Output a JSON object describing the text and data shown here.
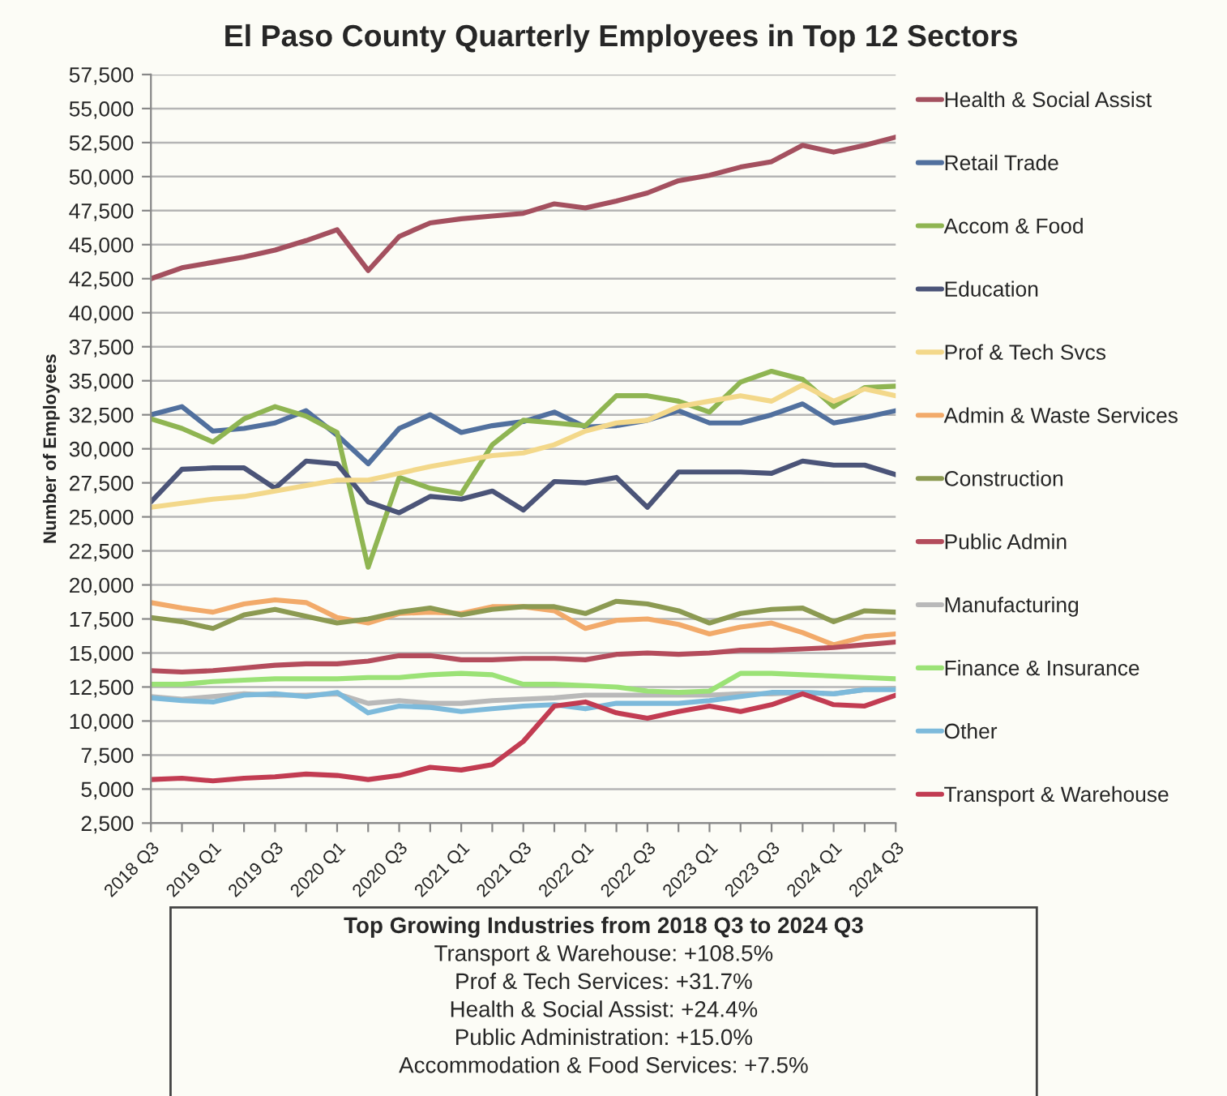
{
  "chart_data": {
    "type": "line",
    "title": "El Paso County Quarterly Employees in Top 12 Sectors",
    "ylabel": "Number of Employees",
    "categories": [
      "2018 Q3",
      null,
      "2019 Q1",
      null,
      "2019 Q3",
      null,
      "2020 Q1",
      null,
      "2020 Q3",
      null,
      "2021 Q1",
      null,
      "2021 Q3",
      null,
      "2022 Q1",
      null,
      "2022 Q3",
      null,
      "2023 Q1",
      null,
      "2023 Q3",
      null,
      "2024 Q1",
      null,
      "2024 Q3"
    ],
    "series": [
      {
        "name": "Health & Social Assist",
        "color": "#a4505f",
        "values": [
          42500,
          43300,
          43700,
          44100,
          44600,
          45300,
          46100,
          43100,
          45600,
          46600,
          46900,
          47100,
          47300,
          48000,
          47700,
          48200,
          48800,
          49700,
          50100,
          50700,
          51100,
          52300,
          51800,
          52300,
          52900
        ]
      },
      {
        "name": "Retail Trade",
        "color": "#51709e",
        "values": [
          32500,
          33100,
          31300,
          31500,
          31900,
          32800,
          31000,
          28900,
          31500,
          32500,
          31200,
          31700,
          32000,
          32700,
          31600,
          31700,
          32100,
          32800,
          31900,
          31900,
          32500,
          33300,
          31900,
          32300,
          32800
        ]
      },
      {
        "name": "Accom & Food",
        "color": "#8fb552",
        "values": [
          32200,
          31500,
          30500,
          32200,
          33100,
          32400,
          31200,
          21300,
          27900,
          27100,
          26700,
          30300,
          32100,
          31900,
          31700,
          33900,
          33900,
          33500,
          32700,
          34900,
          35700,
          35100,
          33100,
          34500,
          34600
        ]
      },
      {
        "name": "Education",
        "color": "#4b5478",
        "values": [
          26100,
          28500,
          28600,
          28600,
          27100,
          29100,
          28900,
          26100,
          25300,
          26500,
          26300,
          26900,
          25500,
          27600,
          27500,
          27900,
          25700,
          28300,
          28300,
          28300,
          28200,
          29100,
          28800,
          28800,
          28100
        ]
      },
      {
        "name": "Prof & Tech Svcs",
        "color": "#f3d88a",
        "values": [
          25700,
          26000,
          26300,
          26500,
          26900,
          27300,
          27700,
          27700,
          28200,
          28700,
          29100,
          29500,
          29700,
          30300,
          31300,
          31900,
          32100,
          33100,
          33500,
          33900,
          33500,
          34700,
          33500,
          34400,
          33900
        ]
      },
      {
        "name": "Admin & Waste Services",
        "color": "#f2aa6a",
        "values": [
          18700,
          18300,
          18000,
          18600,
          18900,
          18700,
          17600,
          17200,
          17900,
          18000,
          17900,
          18400,
          18400,
          18100,
          16800,
          17400,
          17500,
          17100,
          16400,
          16900,
          17200,
          16500,
          15600,
          16200,
          16400
        ]
      },
      {
        "name": "Construction",
        "color": "#8c9a52",
        "values": [
          17600,
          17300,
          16800,
          17800,
          18200,
          17700,
          17200,
          17500,
          18000,
          18300,
          17800,
          18200,
          18400,
          18400,
          17900,
          18800,
          18600,
          18100,
          17200,
          17900,
          18200,
          18300,
          17300,
          18100,
          18000
        ]
      },
      {
        "name": "Public Admin",
        "color": "#b44c5c",
        "values": [
          13700,
          13600,
          13700,
          13900,
          14100,
          14200,
          14200,
          14400,
          14800,
          14800,
          14500,
          14500,
          14600,
          14600,
          14500,
          14900,
          15000,
          14900,
          15000,
          15200,
          15200,
          15300,
          15400,
          15600,
          15800
        ]
      },
      {
        "name": "Manufacturing",
        "color": "#b9b9b9",
        "values": [
          11800,
          11600,
          11800,
          12000,
          11900,
          11900,
          12000,
          11300,
          11500,
          11300,
          11300,
          11500,
          11600,
          11700,
          11900,
          11900,
          11900,
          11900,
          11900,
          12000,
          12000,
          12100,
          12000,
          12300,
          12400
        ]
      },
      {
        "name": "Finance & Insurance",
        "color": "#9be276",
        "values": [
          12700,
          12700,
          12900,
          13000,
          13100,
          13100,
          13100,
          13200,
          13200,
          13400,
          13500,
          13400,
          12700,
          12700,
          12600,
          12500,
          12200,
          12100,
          12200,
          13500,
          13500,
          13400,
          13300,
          13200,
          13100
        ]
      },
      {
        "name": "Other",
        "color": "#7dbadb",
        "values": [
          11700,
          11500,
          11400,
          11900,
          12000,
          11800,
          12100,
          10600,
          11100,
          11000,
          10700,
          10900,
          11100,
          11200,
          10900,
          11300,
          11300,
          11300,
          11500,
          11800,
          12100,
          12100,
          12000,
          12300,
          12300
        ]
      },
      {
        "name": "Transport & Warehouse",
        "color": "#c23c52",
        "values": [
          5700,
          5800,
          5600,
          5800,
          5900,
          6100,
          6000,
          5700,
          6000,
          6600,
          6400,
          6800,
          8500,
          11100,
          11400,
          10600,
          10200,
          10700,
          11100,
          10700,
          11200,
          12000,
          11200,
          11100,
          11900
        ]
      }
    ],
    "ylim": [
      2500,
      57500
    ],
    "yticks": [
      {
        "value": 2500,
        "label": "2,500"
      },
      {
        "value": 5000,
        "label": "5,000"
      },
      {
        "value": 7500,
        "label": "7,500"
      },
      {
        "value": 10000,
        "label": "10,000"
      },
      {
        "value": 12500,
        "label": "12,500"
      },
      {
        "value": 15000,
        "label": "15,000"
      },
      {
        "value": 17500,
        "label": "17,500"
      },
      {
        "value": 20000,
        "label": "20,000"
      },
      {
        "value": 22500,
        "label": "22,500"
      },
      {
        "value": 25000,
        "label": "25,000"
      },
      {
        "value": 27500,
        "label": "27,500"
      },
      {
        "value": 30000,
        "label": "30,000"
      },
      {
        "value": 32500,
        "label": "32,500"
      },
      {
        "value": 35000,
        "label": "35,000"
      },
      {
        "value": 37500,
        "label": "37,500"
      },
      {
        "value": 40000,
        "label": "40,000"
      },
      {
        "value": 42500,
        "label": "42,500"
      },
      {
        "value": 45000,
        "label": "45,000"
      },
      {
        "value": 47500,
        "label": "47,500"
      },
      {
        "value": 50000,
        "label": "50,000"
      },
      {
        "value": 52500,
        "label": "52,500"
      },
      {
        "value": 55000,
        "label": "55,000"
      },
      {
        "value": 57500,
        "label": "57,500"
      }
    ],
    "grid": "y",
    "legend": "right",
    "annotations": [
      "Top Growing Industries from 2018 Q3 to 2024 Q3",
      "Transport & Warehouse: +108.5%",
      "Prof & Tech Services: +31.7%",
      "Health & Social Assist: +24.4%",
      "Public Administration: +15.0%",
      "Accommodation & Food Services: +7.5%"
    ]
  }
}
